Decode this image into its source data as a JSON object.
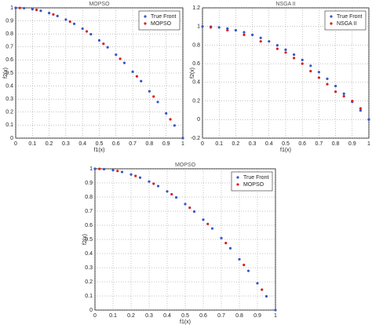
{
  "chart_data": [
    {
      "type": "scatter",
      "title": "MOPSO",
      "x_label": "f1(x)",
      "y_label": "f2(x)",
      "xlim": [
        0,
        1
      ],
      "ylim": [
        0,
        1
      ],
      "xticks": [
        0,
        0.1,
        0.2,
        0.3,
        0.4,
        0.5,
        0.6,
        0.7,
        0.8,
        0.9,
        1
      ],
      "yticks": [
        0,
        0.1,
        0.2,
        0.3,
        0.4,
        0.5,
        0.6,
        0.7,
        0.8,
        0.9,
        1
      ],
      "grid": true,
      "legend": "upper right",
      "series": [
        {
          "name": "True Front",
          "color": "#3a55c8",
          "x": [
            0,
            0.05,
            0.1,
            0.15,
            0.2,
            0.25,
            0.3,
            0.35,
            0.4,
            0.45,
            0.5,
            0.55,
            0.6,
            0.65,
            0.7,
            0.75,
            0.8,
            0.85,
            0.9,
            0.95,
            1
          ],
          "values": [
            1,
            0.9975,
            0.99,
            0.9775,
            0.96,
            0.9375,
            0.91,
            0.8775,
            0.84,
            0.7975,
            0.75,
            0.6975,
            0.64,
            0.5775,
            0.51,
            0.4375,
            0.36,
            0.2775,
            0.19,
            0.0975,
            0
          ]
        },
        {
          "name": "MOPSO",
          "color": "#d92020",
          "x": [
            0.025,
            0.125,
            0.225,
            0.325,
            0.425,
            0.525,
            0.625,
            0.725,
            0.825,
            0.925
          ],
          "values": [
            0.9994,
            0.9844,
            0.9494,
            0.8944,
            0.8194,
            0.7244,
            0.6094,
            0.4744,
            0.3194,
            0.1444
          ]
        }
      ]
    },
    {
      "type": "scatter",
      "title": "NSGA II",
      "x_label": "f1(x)",
      "y_label": "f2(x)",
      "xlim": [
        0,
        1
      ],
      "ylim": [
        -0.2,
        1.2
      ],
      "xticks": [
        0,
        0.1,
        0.2,
        0.3,
        0.4,
        0.5,
        0.6,
        0.7,
        0.8,
        0.9,
        1
      ],
      "yticks": [
        -0.2,
        0,
        0.2,
        0.4,
        0.6,
        0.8,
        1,
        1.2
      ],
      "grid": true,
      "legend": "upper right",
      "series": [
        {
          "name": "True Front",
          "color": "#3a55c8",
          "x": [
            0,
            0.05,
            0.1,
            0.15,
            0.2,
            0.25,
            0.3,
            0.35,
            0.4,
            0.45,
            0.5,
            0.55,
            0.6,
            0.65,
            0.7,
            0.75,
            0.8,
            0.85,
            0.9,
            0.95,
            1
          ],
          "values": [
            1,
            0.9975,
            0.99,
            0.9775,
            0.96,
            0.9375,
            0.91,
            0.8775,
            0.84,
            0.7975,
            0.75,
            0.6975,
            0.64,
            0.5775,
            0.51,
            0.4375,
            0.36,
            0.2775,
            0.19,
            0.0975,
            0
          ]
        },
        {
          "name": "NSGA II",
          "color": "#d92020",
          "x": [
            0.05,
            0.15,
            0.25,
            0.35,
            0.45,
            0.5,
            0.55,
            0.6,
            0.65,
            0.7,
            0.75,
            0.8,
            0.85,
            0.9,
            0.95
          ],
          "values": [
            0.99,
            0.96,
            0.91,
            0.84,
            0.76,
            0.72,
            0.66,
            0.6,
            0.52,
            0.45,
            0.38,
            0.3,
            0.25,
            0.2,
            0.12
          ]
        }
      ]
    },
    {
      "type": "scatter",
      "title": "MOPSO",
      "x_label": "f1(x)",
      "y_label": "f2(x)",
      "xlim": [
        0,
        1
      ],
      "ylim": [
        0,
        1
      ],
      "xticks": [
        0,
        0.1,
        0.2,
        0.3,
        0.4,
        0.5,
        0.6,
        0.7,
        0.8,
        0.9,
        1
      ],
      "yticks": [
        0,
        0.1,
        0.2,
        0.3,
        0.4,
        0.5,
        0.6,
        0.7,
        0.8,
        0.9,
        1
      ],
      "grid": true,
      "legend": "upper right",
      "series": [
        {
          "name": "True Front",
          "color": "#3a55c8",
          "x": [
            0,
            0.05,
            0.1,
            0.15,
            0.2,
            0.25,
            0.3,
            0.35,
            0.4,
            0.45,
            0.5,
            0.55,
            0.6,
            0.65,
            0.7,
            0.75,
            0.8,
            0.85,
            0.9,
            0.95,
            1
          ],
          "values": [
            1,
            0.9975,
            0.99,
            0.9775,
            0.96,
            0.9375,
            0.91,
            0.8775,
            0.84,
            0.7975,
            0.75,
            0.6975,
            0.64,
            0.5775,
            0.51,
            0.4375,
            0.36,
            0.2775,
            0.19,
            0.0975,
            0
          ]
        },
        {
          "name": "MOPSO",
          "color": "#d92020",
          "x": [
            0.025,
            0.125,
            0.225,
            0.325,
            0.425,
            0.525,
            0.625,
            0.725,
            0.825,
            0.925
          ],
          "values": [
            0.9994,
            0.9844,
            0.9494,
            0.8944,
            0.8194,
            0.7244,
            0.6094,
            0.4744,
            0.3194,
            0.1444
          ]
        }
      ]
    }
  ]
}
